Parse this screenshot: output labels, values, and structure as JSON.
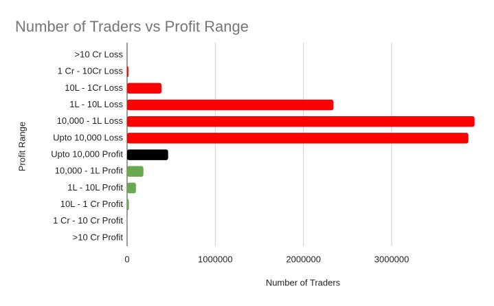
{
  "chart_data": {
    "type": "hbar",
    "title": "Number of Traders vs Profit Range",
    "categories": [
      ">10 Cr Loss",
      "1 Cr - 10Cr Loss",
      "10L - 1Cr Loss",
      "1L - 10L Loss",
      "10,000 - 1L Loss",
      "Upto 10,000 Loss",
      "Upto 10,000 Profit",
      "10,000 - 1L Profit",
      "1L - 10L Profit",
      "10L - 1 Cr Profit",
      "1 Cr - 10 Cr Profit",
      ">10 Cr Profit"
    ],
    "values": [
      100,
      15000,
      390000,
      2340000,
      3940000,
      3870000,
      465000,
      185000,
      100000,
      20000,
      2000,
      500
    ],
    "colors": [
      "#ff0000",
      "#ff0000",
      "#ff0000",
      "#ff0000",
      "#ff0000",
      "#ff0000",
      "#000000",
      "#6aa84f",
      "#6aa84f",
      "#6aa84f",
      "#6aa84f",
      "#6aa84f"
    ],
    "xlim": [
      0,
      3950000
    ],
    "xticks": [
      0,
      1000000,
      2000000,
      3000000
    ],
    "grid": true,
    "xlabel": "Number of Traders",
    "ylabel": "Profit Range"
  }
}
